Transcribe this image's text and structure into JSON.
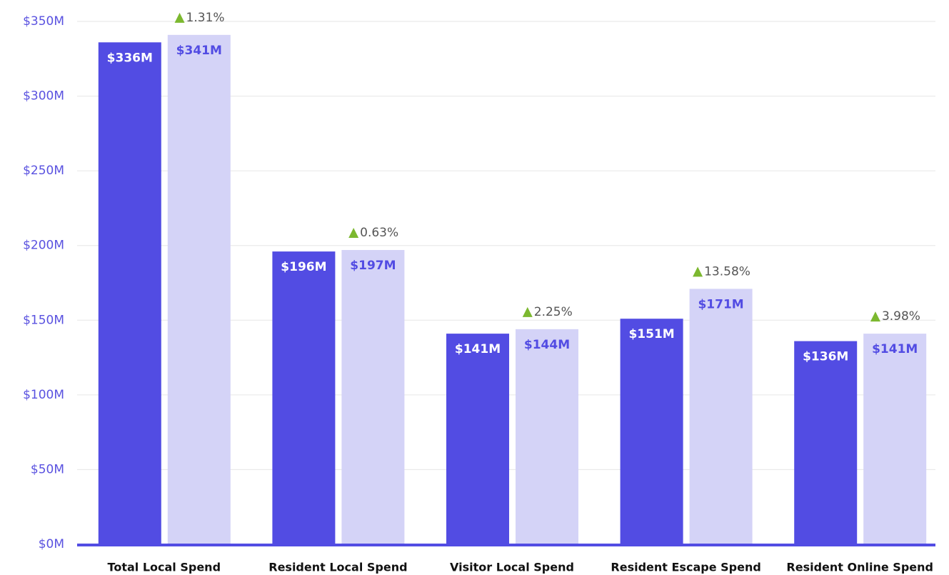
{
  "chart_data": {
    "type": "bar",
    "categories": [
      "Total Local Spend",
      "Resident Local Spend",
      "Visitor Local Spend",
      "Resident Escape Spend",
      "Resident Online Spend"
    ],
    "series": [
      {
        "color": "#524ce3",
        "values": [
          336,
          196,
          141,
          151,
          136
        ],
        "value_labels": [
          "$336M",
          "$196M",
          "$141M",
          "$151M",
          "$136M"
        ]
      },
      {
        "color": "#d4d3f7",
        "values": [
          341,
          197,
          144,
          171,
          141
        ],
        "value_labels": [
          "$341M",
          "$197M",
          "$144M",
          "$171M",
          "$141M"
        ]
      }
    ],
    "changes": [
      1.31,
      0.63,
      2.25,
      13.58,
      3.98
    ],
    "change_labels": [
      "1.31%",
      "0.63%",
      "2.25%",
      "13.58%",
      "3.98%"
    ],
    "ylim": [
      0,
      350
    ],
    "yticks": [
      {
        "value": 0,
        "label": "$0M"
      },
      {
        "value": 50,
        "label": "$50M"
      },
      {
        "value": 100,
        "label": "$100M"
      },
      {
        "value": 150,
        "label": "$150M"
      },
      {
        "value": 200,
        "label": "$200M"
      },
      {
        "value": 250,
        "label": "$250M"
      },
      {
        "value": 300,
        "label": "$300M"
      },
      {
        "value": 350,
        "label": "$350M"
      }
    ],
    "grid": true
  }
}
